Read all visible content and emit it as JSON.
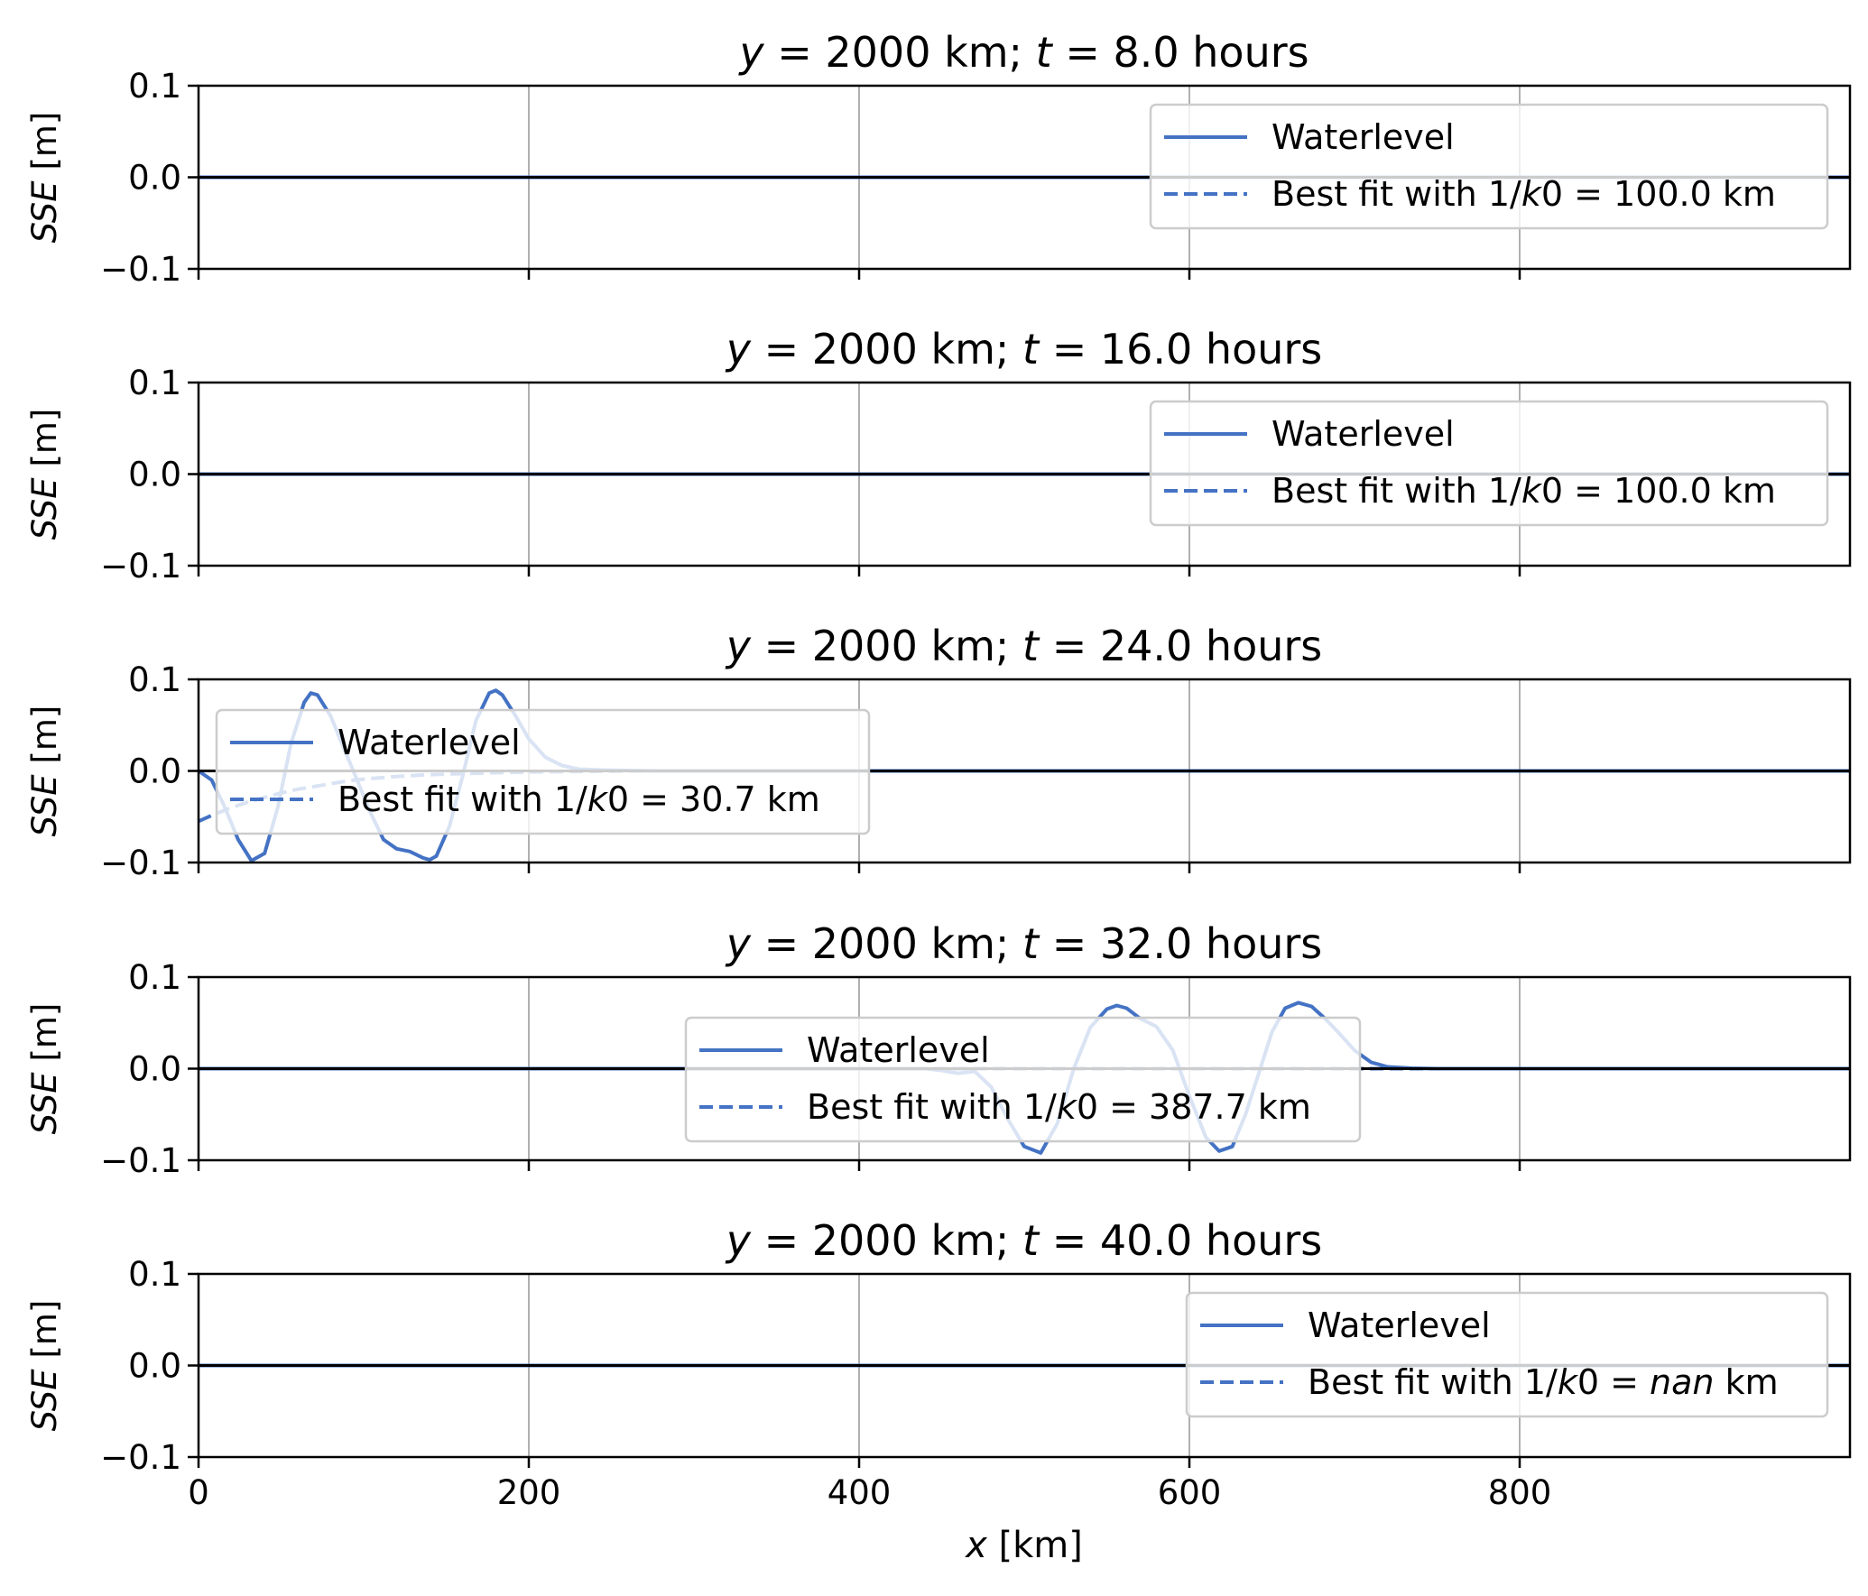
{
  "colors": {
    "waterlevel": "#4472c4",
    "best_fit": "#4472c4",
    "zero_line": "#000000",
    "grid": "#b0b0b0"
  },
  "chart_data": [
    {
      "type": "line",
      "title": "y = 2000 km; t = 8.0 hours",
      "title_parts": {
        "y": "y",
        "eq1": " = 2000 km; ",
        "t": "t",
        "eq2": " = 8.0 hours"
      },
      "ylabel": "SSE [m]",
      "xlim": [
        0,
        1000
      ],
      "ylim": [
        -0.1,
        0.1
      ],
      "xticks": [
        0,
        200,
        400,
        600,
        800
      ],
      "yticks": [
        0.1,
        0.0,
        -0.1
      ],
      "ytick_labels": [
        "0.1",
        "0.0",
        "−0.1"
      ],
      "legend_position": "upper right",
      "legend": {
        "waterlevel": "Waterlevel",
        "fit_prefix": "Best fit with 1/",
        "fit_k": "k",
        "fit_mid": "0 = ",
        "fit_value": "100.0",
        "fit_unit": " km"
      },
      "series": [
        {
          "name": "Waterlevel",
          "style": "solid",
          "x": [
            0,
            1000
          ],
          "y": [
            0,
            0
          ]
        },
        {
          "name": "Best fit with 1/k0 = 100.0 km",
          "style": "dashed",
          "x": [
            0,
            1000
          ],
          "y": [
            0,
            0
          ]
        }
      ]
    },
    {
      "type": "line",
      "title": "y = 2000 km; t = 16.0 hours",
      "title_parts": {
        "y": "y",
        "eq1": " = 2000 km; ",
        "t": "t",
        "eq2": " = 16.0 hours"
      },
      "ylabel": "SSE [m]",
      "xlim": [
        0,
        1000
      ],
      "ylim": [
        -0.1,
        0.1
      ],
      "xticks": [
        0,
        200,
        400,
        600,
        800
      ],
      "yticks": [
        0.1,
        0.0,
        -0.1
      ],
      "ytick_labels": [
        "0.1",
        "0.0",
        "−0.1"
      ],
      "legend_position": "upper right",
      "legend": {
        "waterlevel": "Waterlevel",
        "fit_prefix": "Best fit with 1/",
        "fit_k": "k",
        "fit_mid": "0 = ",
        "fit_value": "100.0",
        "fit_unit": " km"
      },
      "series": [
        {
          "name": "Waterlevel",
          "style": "solid",
          "x": [
            0,
            1000
          ],
          "y": [
            0,
            0
          ]
        },
        {
          "name": "Best fit with 1/k0 = 100.0 km",
          "style": "dashed",
          "x": [
            0,
            1000
          ],
          "y": [
            0,
            0
          ]
        }
      ]
    },
    {
      "type": "line",
      "title": "y = 2000 km; t = 24.0 hours",
      "title_parts": {
        "y": "y",
        "eq1": " = 2000 km; ",
        "t": "t",
        "eq2": " = 24.0 hours"
      },
      "ylabel": "SSE [m]",
      "xlim": [
        0,
        1000
      ],
      "ylim": [
        -0.1,
        0.1
      ],
      "xticks": [
        0,
        200,
        400,
        600,
        800
      ],
      "yticks": [
        0.1,
        0.0,
        -0.1
      ],
      "ytick_labels": [
        "0.1",
        "0.0",
        "−0.1"
      ],
      "legend_position": "upper left",
      "legend": {
        "waterlevel": "Waterlevel",
        "fit_prefix": "Best fit with 1/",
        "fit_k": "k",
        "fit_mid": "0 = ",
        "fit_value": "30.7",
        "fit_unit": " km"
      },
      "series": [
        {
          "name": "Waterlevel",
          "style": "solid",
          "x": [
            0,
            8,
            16,
            24,
            32,
            40,
            48,
            56,
            64,
            68,
            72,
            80,
            88,
            96,
            104,
            112,
            120,
            128,
            136,
            140,
            144,
            152,
            160,
            168,
            176,
            180,
            184,
            192,
            200,
            210,
            220,
            230,
            245,
            260,
            280,
            300,
            1000
          ],
          "y": [
            0.0,
            -0.01,
            -0.04,
            -0.075,
            -0.098,
            -0.09,
            -0.04,
            0.03,
            0.075,
            0.085,
            0.083,
            0.06,
            0.025,
            -0.01,
            -0.045,
            -0.075,
            -0.085,
            -0.088,
            -0.095,
            -0.097,
            -0.093,
            -0.06,
            -0.005,
            0.055,
            0.085,
            0.088,
            0.083,
            0.06,
            0.035,
            0.015,
            0.006,
            0.002,
            0.001,
            0.0005,
            0.0,
            0.0,
            0.0
          ]
        },
        {
          "name": "Best fit with 1/k0 = 30.7 km",
          "style": "dashed",
          "x": [
            0,
            10,
            20,
            30,
            40,
            50,
            60,
            70,
            80,
            90,
            100,
            120,
            140,
            160,
            180,
            200,
            220,
            240,
            260,
            1000
          ],
          "y": [
            -0.055,
            -0.047,
            -0.04,
            -0.034,
            -0.029,
            -0.024,
            -0.02,
            -0.017,
            -0.014,
            -0.011,
            -0.009,
            -0.006,
            -0.004,
            -0.003,
            -0.002,
            -0.0012,
            -0.0007,
            -0.0004,
            0.0,
            0.0
          ]
        }
      ]
    },
    {
      "type": "line",
      "title": "y = 2000 km; t = 32.0 hours",
      "title_parts": {
        "y": "y",
        "eq1": " = 2000 km; ",
        "t": "t",
        "eq2": " = 32.0 hours"
      },
      "ylabel": "SSE [m]",
      "xlim": [
        0,
        1000
      ],
      "ylim": [
        -0.1,
        0.1
      ],
      "xticks": [
        0,
        200,
        400,
        600,
        800
      ],
      "yticks": [
        0.1,
        0.0,
        -0.1
      ],
      "ytick_labels": [
        "0.1",
        "0.0",
        "−0.1"
      ],
      "legend_position": "lower center",
      "legend": {
        "waterlevel": "Waterlevel",
        "fit_prefix": "Best fit with 1/",
        "fit_k": "k",
        "fit_mid": "0 = ",
        "fit_value": "387.7",
        "fit_unit": " km"
      },
      "series": [
        {
          "name": "Waterlevel",
          "style": "solid",
          "x": [
            0,
            440,
            450,
            460,
            470,
            480,
            490,
            500,
            510,
            520,
            530,
            540,
            550,
            556,
            562,
            570,
            580,
            590,
            600,
            610,
            618,
            626,
            634,
            642,
            650,
            658,
            666,
            674,
            682,
            690,
            700,
            710,
            720,
            735,
            750,
            1000
          ],
          "y": [
            0.0,
            0.0,
            -0.002,
            -0.005,
            -0.003,
            -0.02,
            -0.055,
            -0.085,
            -0.092,
            -0.06,
            0.0,
            0.045,
            0.065,
            0.069,
            0.066,
            0.055,
            0.046,
            0.02,
            -0.03,
            -0.075,
            -0.09,
            -0.085,
            -0.05,
            -0.005,
            0.04,
            0.066,
            0.072,
            0.068,
            0.055,
            0.04,
            0.02,
            0.007,
            0.002,
            0.0005,
            0.0,
            0.0
          ]
        },
        {
          "name": "Best fit with 1/k0 = 387.7 km",
          "style": "dashed",
          "x": [
            0,
            1000
          ],
          "y": [
            0,
            0
          ]
        }
      ]
    },
    {
      "type": "line",
      "title": "y = 2000 km; t = 40.0 hours",
      "title_parts": {
        "y": "y",
        "eq1": " = 2000 km; ",
        "t": "t",
        "eq2": " = 40.0 hours"
      },
      "ylabel": "SSE [m]",
      "xlabel": "x [km]",
      "xlim": [
        0,
        1000
      ],
      "ylim": [
        -0.1,
        0.1
      ],
      "xticks": [
        0,
        200,
        400,
        600,
        800
      ],
      "xtick_labels": [
        "0",
        "200",
        "400",
        "600",
        "800"
      ],
      "yticks": [
        0.1,
        0.0,
        -0.1
      ],
      "ytick_labels": [
        "0.1",
        "0.0",
        "−0.1"
      ],
      "legend_position": "upper right",
      "legend": {
        "waterlevel": "Waterlevel",
        "fit_prefix": "Best fit with 1/",
        "fit_k": "k",
        "fit_mid": "0 = ",
        "fit_value": "nan",
        "fit_unit": " km"
      },
      "series": [
        {
          "name": "Waterlevel",
          "style": "solid",
          "x": [
            0,
            1000
          ],
          "y": [
            0,
            0
          ]
        },
        {
          "name": "Best fit with 1/k0 = nan km",
          "style": "dashed",
          "x": [],
          "y": []
        }
      ]
    }
  ]
}
